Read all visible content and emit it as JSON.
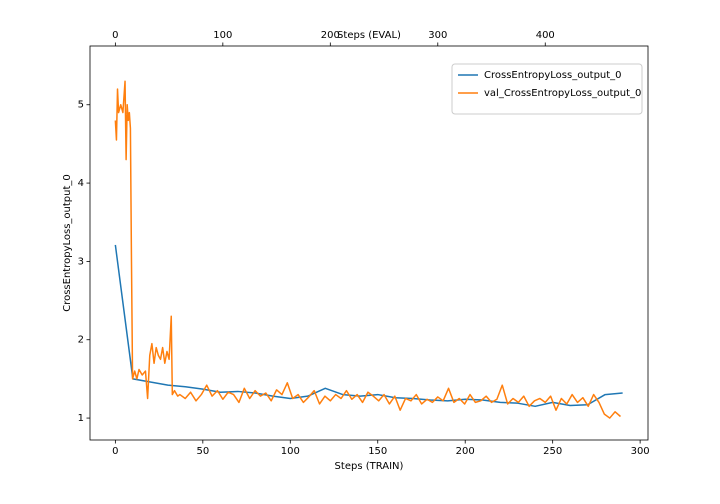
{
  "chart_data": {
    "type": "line",
    "xlabel": "Steps (TRAIN)",
    "x2label": "Steps (EVAL)",
    "ylabel": "CrossEntropyLoss_output_0",
    "xlim": [
      -14.5,
      304.5
    ],
    "xticks": [
      0,
      50,
      100,
      150,
      200,
      250,
      300
    ],
    "x2lim": [
      -23.6,
      495.6
    ],
    "x2ticks": [
      0,
      100,
      200,
      300,
      400
    ],
    "ylim": [
      0.72,
      5.75
    ],
    "yticks": [
      1,
      2,
      3,
      4,
      5
    ],
    "legend": "upper right",
    "series": [
      {
        "name": "CrossEntropyLoss_output_0",
        "color": "#1f77b4",
        "x": [
          0,
          10,
          20,
          30,
          40,
          50,
          60,
          70,
          80,
          90,
          100,
          110,
          120,
          130,
          140,
          150,
          160,
          170,
          180,
          190,
          200,
          210,
          220,
          230,
          240,
          250,
          260,
          270,
          280,
          290
        ],
        "values": [
          3.21,
          1.5,
          1.46,
          1.42,
          1.4,
          1.37,
          1.33,
          1.34,
          1.32,
          1.28,
          1.25,
          1.28,
          1.38,
          1.3,
          1.28,
          1.3,
          1.26,
          1.25,
          1.23,
          1.22,
          1.24,
          1.23,
          1.2,
          1.19,
          1.15,
          1.2,
          1.16,
          1.17,
          1.3,
          1.32
        ]
      },
      {
        "name": "val_CrossEntropyLoss_output_0",
        "color": "#ff7f0e",
        "axis": "x2",
        "x": [
          0,
          1,
          2,
          3,
          5,
          7,
          9,
          10,
          11,
          12,
          13,
          14,
          15,
          16,
          18,
          20,
          22,
          25,
          28,
          30,
          32,
          34,
          36,
          38,
          40,
          42,
          44,
          46,
          48,
          50,
          52,
          53,
          55,
          58,
          60,
          65,
          70,
          75,
          80,
          85,
          90,
          95,
          100,
          105,
          110,
          115,
          120,
          125,
          130,
          135,
          140,
          145,
          150,
          155,
          160,
          165,
          170,
          175,
          180,
          185,
          190,
          195,
          200,
          205,
          210,
          215,
          220,
          225,
          230,
          235,
          240,
          245,
          250,
          255,
          260,
          265,
          270,
          275,
          280,
          285,
          290,
          295,
          300,
          305,
          310,
          315,
          320,
          325,
          330,
          335,
          340,
          345,
          350,
          355,
          360,
          365,
          370,
          375,
          380,
          385,
          390,
          395,
          400,
          405,
          410,
          415,
          420,
          425,
          430,
          435,
          440,
          445,
          450,
          455,
          460,
          465,
          470
        ],
        "values": [
          4.8,
          4.55,
          5.2,
          4.9,
          5.0,
          4.9,
          5.3,
          4.3,
          5.0,
          4.8,
          4.9,
          4.7,
          3.0,
          1.5,
          1.6,
          1.5,
          1.62,
          1.55,
          1.6,
          1.25,
          1.8,
          1.95,
          1.7,
          1.9,
          1.8,
          1.75,
          1.9,
          1.7,
          1.85,
          1.75,
          2.3,
          1.3,
          1.35,
          1.28,
          1.3,
          1.25,
          1.33,
          1.22,
          1.3,
          1.42,
          1.28,
          1.35,
          1.24,
          1.33,
          1.3,
          1.2,
          1.38,
          1.25,
          1.35,
          1.28,
          1.32,
          1.22,
          1.36,
          1.3,
          1.45,
          1.25,
          1.3,
          1.2,
          1.27,
          1.35,
          1.18,
          1.28,
          1.22,
          1.3,
          1.25,
          1.35,
          1.24,
          1.3,
          1.2,
          1.33,
          1.28,
          1.22,
          1.3,
          1.18,
          1.28,
          1.1,
          1.25,
          1.22,
          1.3,
          1.18,
          1.24,
          1.2,
          1.27,
          1.22,
          1.38,
          1.2,
          1.25,
          1.18,
          1.3,
          1.2,
          1.22,
          1.28,
          1.2,
          1.24,
          1.42,
          1.18,
          1.25,
          1.2,
          1.28,
          1.15,
          1.22,
          1.25,
          1.2,
          1.28,
          1.1,
          1.25,
          1.18,
          1.3,
          1.2,
          1.26,
          1.15,
          1.3,
          1.2,
          1.05,
          1.0,
          1.08,
          1.02
        ]
      }
    ]
  }
}
